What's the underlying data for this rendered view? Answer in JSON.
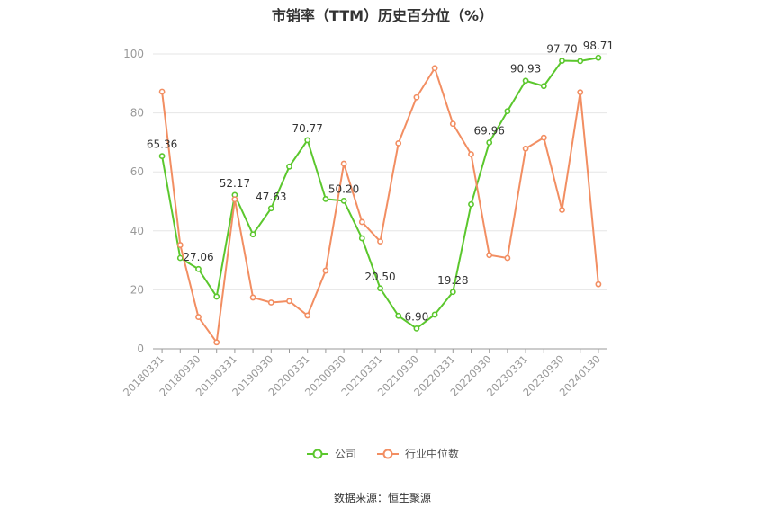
{
  "title": "市销率（TTM）历史百分位（%）",
  "source": "数据来源：恒生聚源",
  "colors": {
    "company": "#5bc72d",
    "industry": "#f28e62",
    "grid": "#e6e6e6",
    "axis": "#999999"
  },
  "chart_data": {
    "type": "line",
    "title": "市销率（TTM）历史百分位（%）",
    "xlabel": "",
    "ylabel": "",
    "ylim": [
      0,
      100
    ],
    "yticks": [
      0,
      20,
      40,
      60,
      80,
      100
    ],
    "grid": true,
    "legend_position": "bottom",
    "x": [
      "20180331",
      "20180630",
      "20180930",
      "20181231",
      "20190331",
      "20190630",
      "20190930",
      "20191231",
      "20200331",
      "20200630",
      "20200930",
      "20201231",
      "20210331",
      "20210630",
      "20210930",
      "20211231",
      "20220331",
      "20220630",
      "20220930",
      "20221231",
      "20230331",
      "20230630",
      "20230930",
      "20231231",
      "20240130"
    ],
    "xtick_labels": [
      "20180331",
      "20180930",
      "20190331",
      "20190930",
      "20200331",
      "20200930",
      "20210331",
      "20210930",
      "20220331",
      "20220930",
      "20230331",
      "20230930",
      "20240130"
    ],
    "series": [
      {
        "name": "公司",
        "values": [
          65.36,
          30.8,
          27.06,
          17.7,
          52.17,
          38.8,
          47.63,
          61.8,
          70.77,
          50.8,
          50.2,
          37.5,
          20.5,
          11.2,
          6.9,
          11.6,
          19.28,
          49.0,
          69.96,
          80.6,
          90.93,
          89.1,
          97.7,
          97.6,
          98.71
        ],
        "labels": {
          "0": "65.36",
          "2": "27.06",
          "4": "52.17",
          "6": "47.63",
          "8": "70.77",
          "10": "50.20",
          "12": "20.50",
          "14": "6.90",
          "16": "19.28",
          "18": "69.96",
          "20": "90.93",
          "22": "97.70",
          "24": "98.71"
        }
      },
      {
        "name": "行业中位数",
        "values": [
          87.2,
          35.2,
          10.8,
          2.2,
          50.7,
          17.4,
          15.7,
          16.2,
          11.3,
          26.5,
          62.8,
          43.0,
          36.4,
          69.7,
          85.3,
          95.2,
          76.3,
          66.0,
          31.8,
          30.8,
          67.9,
          71.6,
          47.1,
          87.0,
          21.9
        ]
      }
    ]
  }
}
